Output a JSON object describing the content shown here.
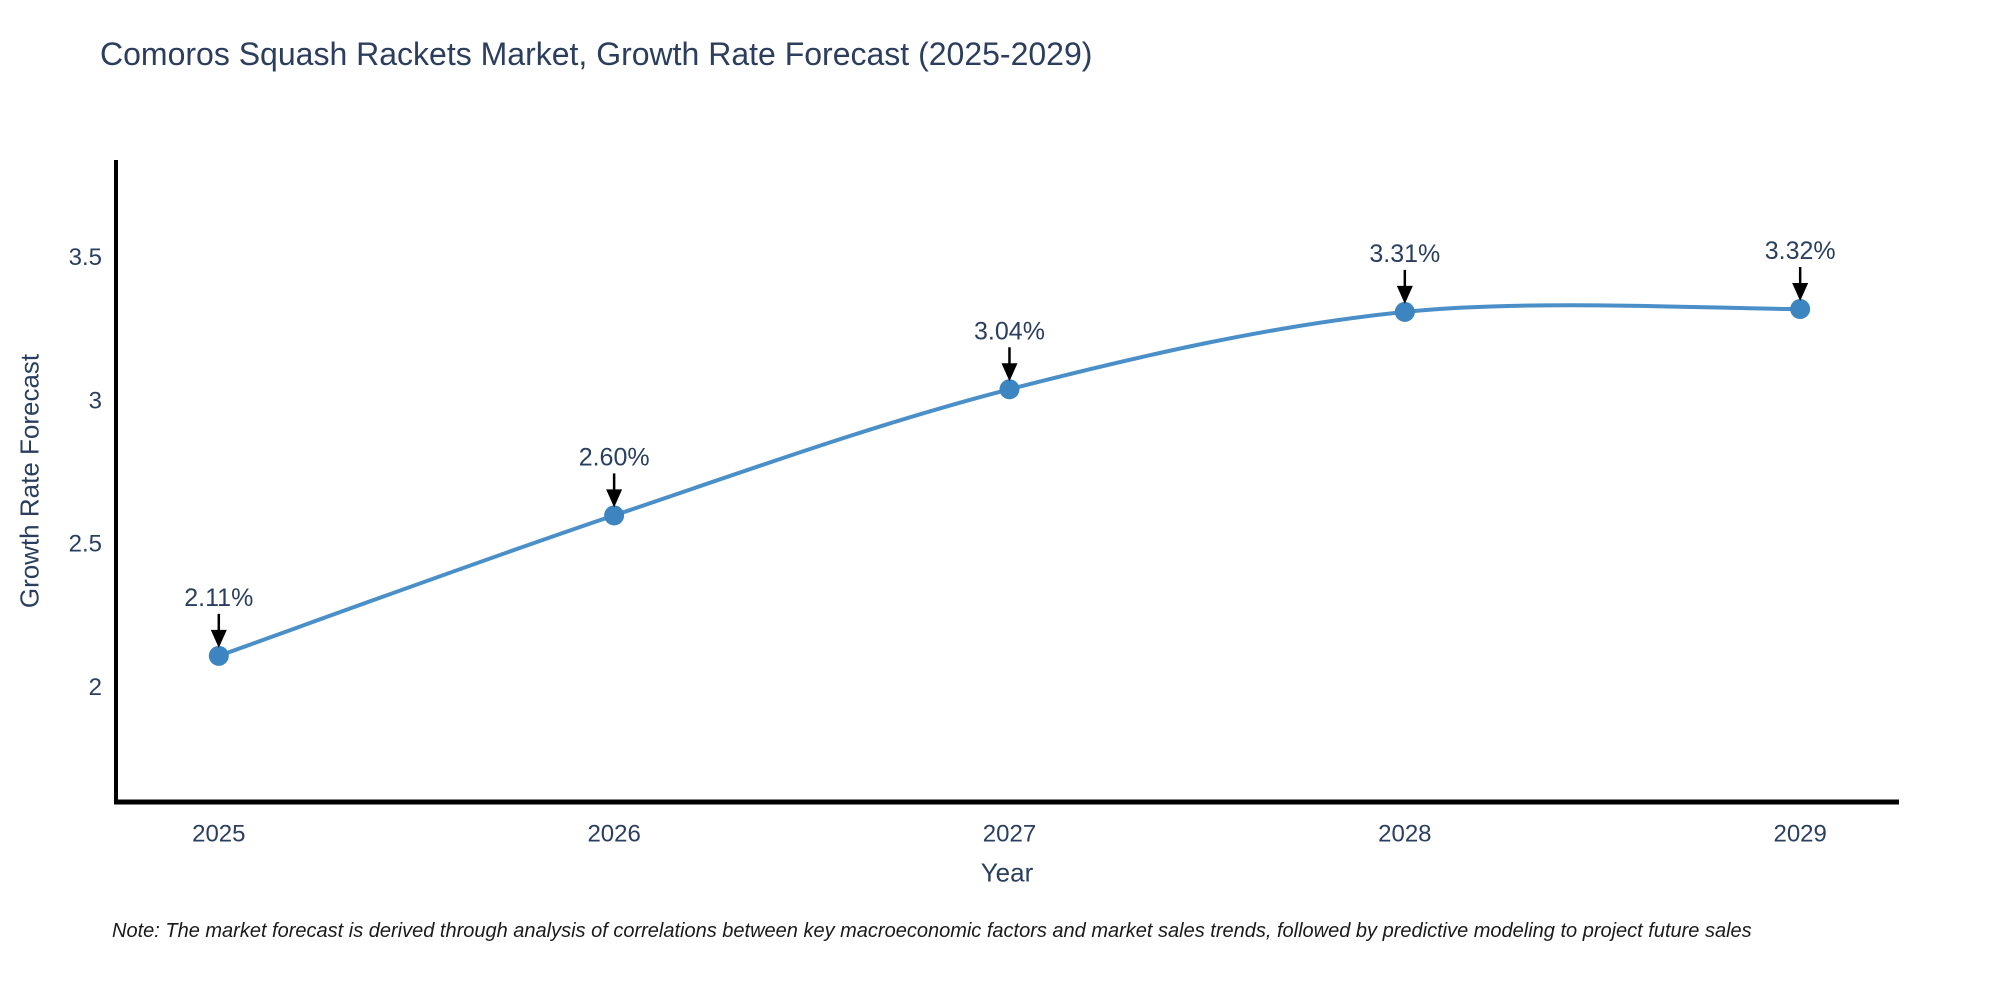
{
  "chart": {
    "title": "Comoros Squash Rackets Market, Growth Rate Forecast (2025-2029)"
  },
  "note": {
    "text": "Note: The market forecast is derived through analysis of correlations between key macroeconomic factors and market sales trends, followed by predictive modeling to project future sales"
  },
  "chart_data": {
    "type": "line",
    "title": "Comoros Squash Rackets Market, Growth Rate Forecast (2025-2029)",
    "xlabel": "Year",
    "ylabel": "Growth Rate Forecast",
    "x": [
      2025,
      2026,
      2027,
      2028,
      2029
    ],
    "values": [
      2.11,
      2.6,
      3.04,
      3.31,
      3.32
    ],
    "point_labels": [
      "2.11%",
      "2.60%",
      "3.04%",
      "3.31%",
      "3.32%"
    ],
    "x_tick_labels": [
      "2025",
      "2026",
      "2027",
      "2028",
      "2029"
    ],
    "y_ticks": [
      2,
      2.5,
      3,
      3.5
    ],
    "y_tick_labels": [
      "2",
      "2.5",
      "3",
      "3.5"
    ],
    "xlim": [
      2024.74,
      2029.25
    ],
    "ylim": [
      1.6,
      3.84
    ],
    "grid": false,
    "legend": false,
    "smooth_line": true,
    "colors": {
      "line": "#4a8fc7",
      "marker": "#3d85c0",
      "axis": "#000000",
      "tick_text": "#2a3f5f",
      "annotation_text": "#2a3f5f",
      "arrow": "#000000"
    }
  }
}
